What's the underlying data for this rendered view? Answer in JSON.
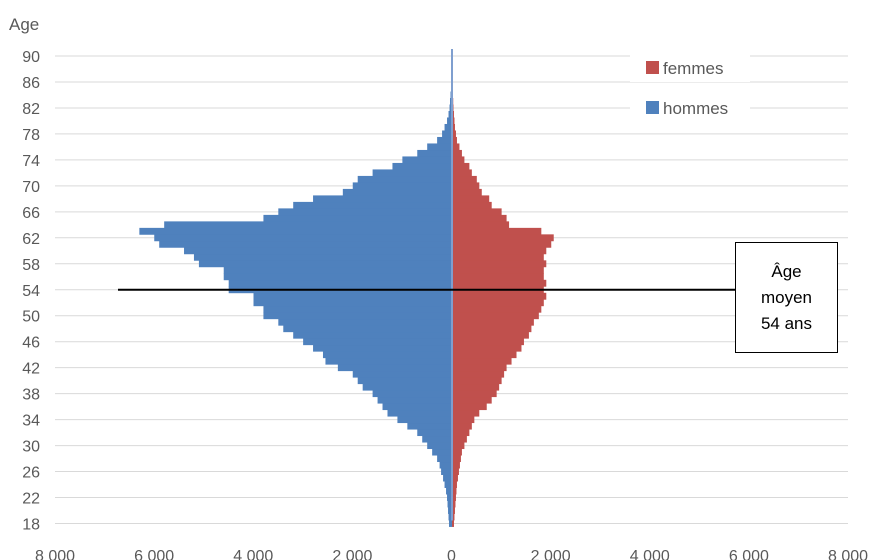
{
  "chart_data": {
    "type": "bar",
    "orientation": "horizontal",
    "layout": "population-pyramid",
    "ylabel": "Age",
    "yticks": [
      "18",
      "22",
      "26",
      "30",
      "34",
      "38",
      "42",
      "46",
      "50",
      "54",
      "58",
      "62",
      "66",
      "70",
      "74",
      "78",
      "82",
      "86",
      "90"
    ],
    "xticks": [
      "8 000",
      "6 000",
      "4 000",
      "2 000",
      "0",
      "2 000",
      "4 000",
      "6 000",
      "8 000"
    ],
    "xlim": [
      -8000,
      8000
    ],
    "ylim": [
      18,
      91
    ],
    "grid": true,
    "legend_position": "top-right",
    "ages": [
      18,
      19,
      20,
      21,
      22,
      23,
      24,
      25,
      26,
      27,
      28,
      29,
      30,
      31,
      32,
      33,
      34,
      35,
      36,
      37,
      38,
      39,
      40,
      41,
      42,
      43,
      44,
      45,
      46,
      47,
      48,
      49,
      50,
      51,
      52,
      53,
      54,
      55,
      56,
      57,
      58,
      59,
      60,
      61,
      62,
      63,
      64,
      65,
      66,
      67,
      68,
      69,
      70,
      71,
      72,
      73,
      74,
      75,
      76,
      77,
      78,
      79,
      80,
      81,
      82,
      83,
      84,
      85,
      86,
      87,
      88,
      89,
      90
    ],
    "series": [
      {
        "name": "femmes",
        "color": "#c0504d",
        "side": "right",
        "values": [
          40,
          50,
          60,
          70,
          80,
          90,
          100,
          120,
          140,
          160,
          180,
          200,
          250,
          300,
          350,
          400,
          450,
          550,
          700,
          800,
          900,
          950,
          1000,
          1050,
          1100,
          1200,
          1300,
          1400,
          1450,
          1550,
          1600,
          1650,
          1750,
          1800,
          1850,
          1900,
          1850,
          1900,
          1850,
          1850,
          1900,
          1850,
          1900,
          2000,
          2050,
          1800,
          1150,
          1100,
          1000,
          800,
          750,
          600,
          550,
          500,
          400,
          350,
          250,
          200,
          150,
          100,
          80,
          60,
          50,
          40,
          30,
          25,
          20,
          15,
          15,
          10,
          10,
          10,
          10
        ]
      },
      {
        "name": "hommes",
        "color": "#4f81bd",
        "side": "left",
        "values": [
          60,
          70,
          80,
          90,
          100,
          120,
          150,
          180,
          220,
          250,
          300,
          400,
          500,
          600,
          700,
          900,
          1100,
          1300,
          1400,
          1500,
          1600,
          1800,
          1900,
          2000,
          2300,
          2550,
          2600,
          2800,
          3000,
          3200,
          3400,
          3500,
          3800,
          3800,
          4000,
          4000,
          4500,
          4500,
          4600,
          4600,
          5100,
          5200,
          5400,
          5900,
          6000,
          6300,
          5800,
          3800,
          3500,
          3200,
          2800,
          2200,
          2000,
          1900,
          1600,
          1200,
          1000,
          700,
          500,
          300,
          200,
          150,
          100,
          70,
          50,
          40,
          30,
          20,
          20,
          10,
          10,
          10,
          10
        ]
      }
    ],
    "reference_line": {
      "value": 54
    },
    "annotation": {
      "lines": [
        "Âge",
        "moyen",
        "54 ans"
      ]
    }
  }
}
